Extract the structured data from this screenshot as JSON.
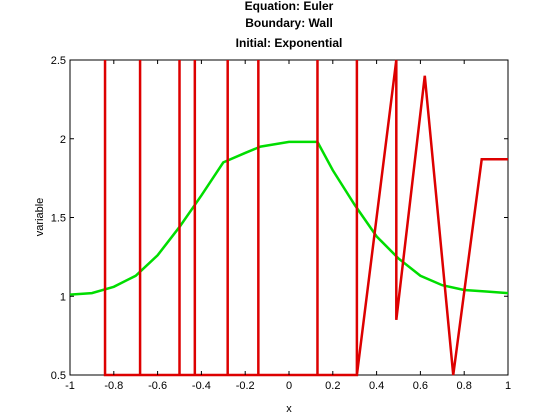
{
  "chart_data": {
    "type": "line",
    "title_lines": [
      "Equation: Euler",
      "Boundary: Wall",
      "Initial: Exponential"
    ],
    "xlabel": "x",
    "ylabel": "variable",
    "xlim": [
      -1,
      1
    ],
    "ylim": [
      0.5,
      2.5
    ],
    "x_ticks": [
      -1,
      -0.8,
      -0.6,
      -0.4,
      -0.2,
      0,
      0.2,
      0.4,
      0.6,
      0.8,
      1
    ],
    "x_tick_labels": [
      "-1",
      "-0.8",
      "-0.6",
      "-0.4",
      "-0.2",
      "0",
      "0.2",
      "0.4",
      "0.6",
      "0.8",
      "1"
    ],
    "y_ticks": [
      0.5,
      1,
      1.5,
      2,
      2.5
    ],
    "y_tick_labels": [
      "0.5",
      "1",
      "1.5",
      "2",
      "2.5"
    ],
    "grid": false,
    "legend": "none",
    "series": [
      {
        "color": "#00dd00",
        "x": [
          -1,
          -0.9,
          -0.8,
          -0.7,
          -0.6,
          -0.5,
          -0.4,
          -0.3,
          -0.2,
          -0.13,
          0,
          0.13,
          0.2,
          0.3,
          0.4,
          0.5,
          0.6,
          0.7,
          0.8,
          0.9,
          1
        ],
        "y": [
          1.01,
          1.02,
          1.06,
          1.13,
          1.26,
          1.44,
          1.64,
          1.85,
          1.91,
          1.95,
          1.98,
          1.98,
          1.8,
          1.58,
          1.38,
          1.24,
          1.13,
          1.07,
          1.04,
          1.03,
          1.02
        ]
      },
      {
        "color": "#dd0000",
        "x": [
          -0.84,
          -0.84,
          -0.84,
          -0.68,
          -0.68,
          -0.68,
          -0.5,
          -0.5,
          -0.5,
          -0.43,
          -0.43,
          -0.43,
          -0.28,
          -0.28,
          -0.28,
          -0.14,
          -0.14,
          -0.14,
          0.13,
          0.13,
          0.13,
          0.31,
          0.31,
          0.31,
          0.49,
          0.49,
          0.62,
          0.75,
          0.88,
          1
        ],
        "y": [
          0.5,
          2.5,
          0.5,
          0.5,
          2.5,
          0.5,
          0.5,
          2.5,
          0.5,
          0.5,
          2.5,
          0.5,
          0.5,
          2.5,
          0.5,
          0.5,
          2.5,
          0.5,
          0.5,
          2.5,
          0.5,
          0.5,
          2.5,
          0.5,
          2.5,
          0.85,
          2.4,
          0.5,
          1.87,
          1.87
        ]
      }
    ]
  }
}
